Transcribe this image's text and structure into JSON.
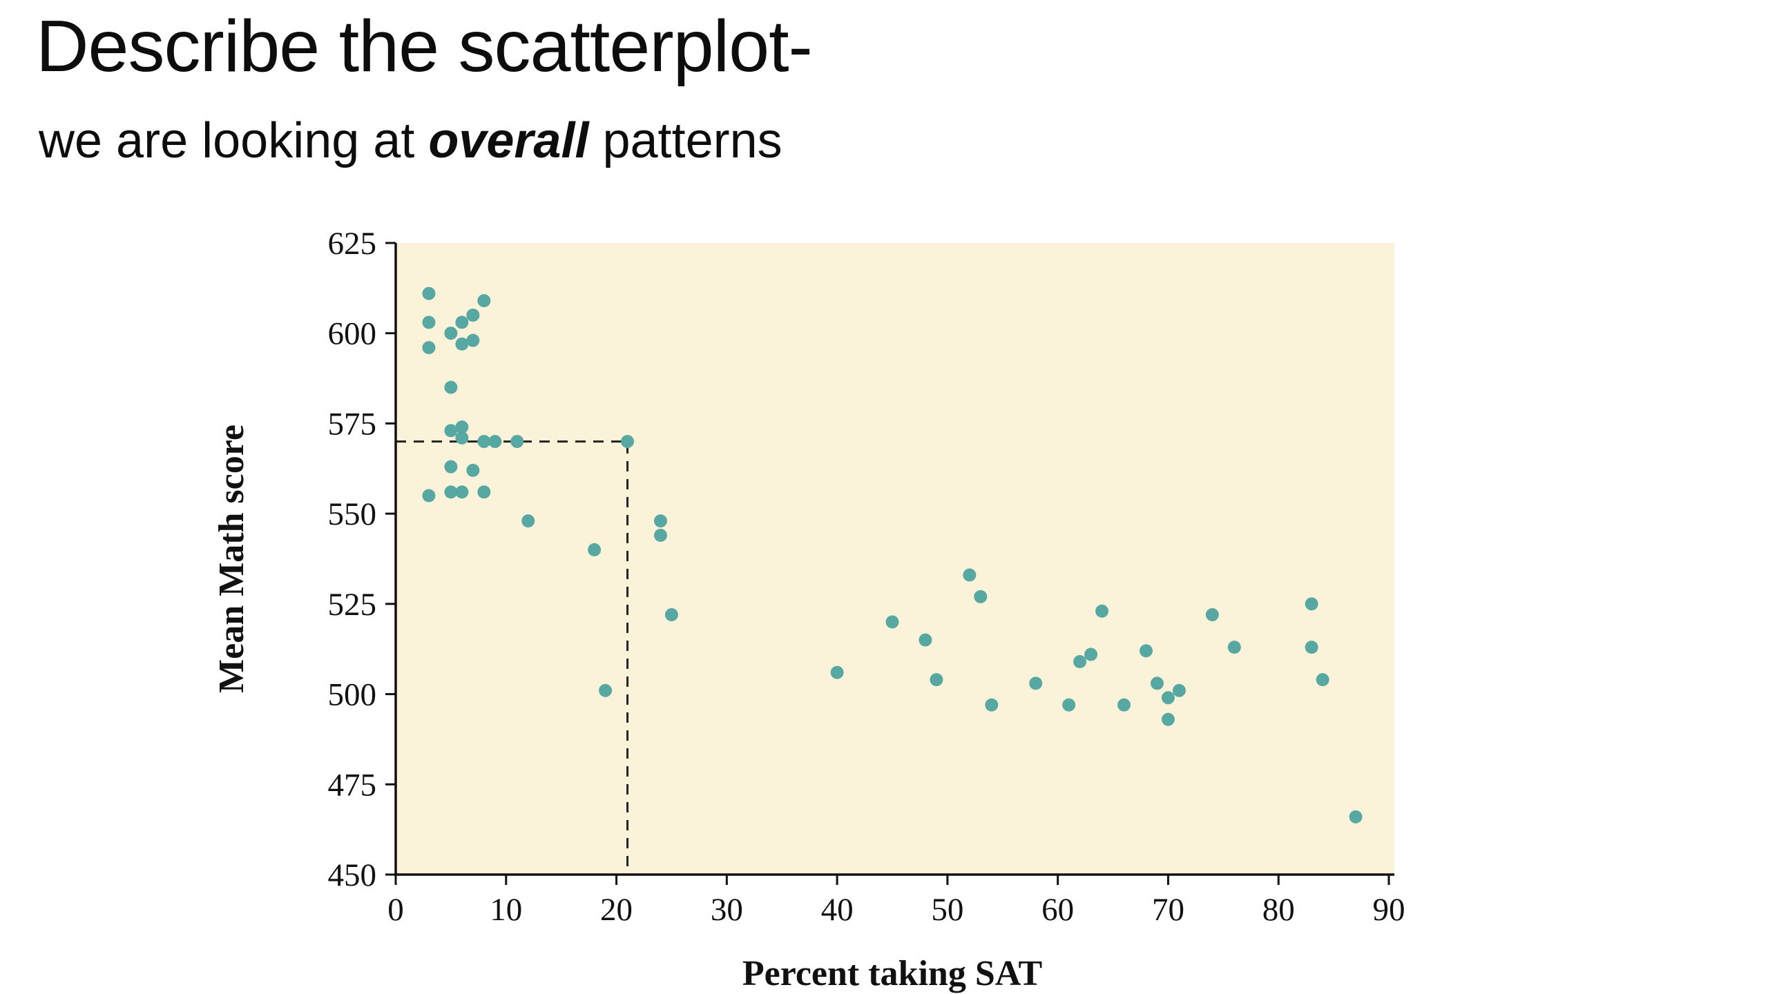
{
  "slide": {
    "title": "Describe the scatterplot-",
    "subtitle_prefix": "we are looking at ",
    "subtitle_emphasis": "overall",
    "subtitle_suffix": " patterns"
  },
  "chart_data": {
    "type": "scatter",
    "title": "",
    "xlabel": "Percent taking SAT",
    "ylabel": "Mean Math score",
    "xlim": [
      0,
      90
    ],
    "ylim": [
      450,
      625
    ],
    "x_ticks": [
      0,
      10,
      20,
      30,
      40,
      50,
      60,
      70,
      80,
      90
    ],
    "y_ticks": [
      450,
      475,
      500,
      525,
      550,
      575,
      600,
      625
    ],
    "grid": false,
    "legend_position": "none",
    "plot_bg_color": "#faf3da",
    "point_color": "#57a8a2",
    "axis_color": "#111111",
    "dashed_reference": {
      "x": 21,
      "y": 570
    },
    "points": [
      [
        3,
        611
      ],
      [
        3,
        603
      ],
      [
        3,
        596
      ],
      [
        5,
        600
      ],
      [
        6,
        603
      ],
      [
        7,
        605
      ],
      [
        8,
        609
      ],
      [
        6,
        597
      ],
      [
        7,
        598
      ],
      [
        5,
        585
      ],
      [
        5,
        573
      ],
      [
        6,
        574
      ],
      [
        6,
        571
      ],
      [
        8,
        570
      ],
      [
        9,
        570
      ],
      [
        5,
        563
      ],
      [
        7,
        562
      ],
      [
        3,
        555
      ],
      [
        5,
        556
      ],
      [
        6,
        556
      ],
      [
        8,
        556
      ],
      [
        11,
        570
      ],
      [
        12,
        548
      ],
      [
        18,
        540
      ],
      [
        19,
        501
      ],
      [
        21,
        570
      ],
      [
        24,
        548
      ],
      [
        24,
        544
      ],
      [
        25,
        522
      ],
      [
        40,
        506
      ],
      [
        45,
        520
      ],
      [
        48,
        515
      ],
      [
        49,
        504
      ],
      [
        52,
        533
      ],
      [
        53,
        527
      ],
      [
        54,
        497
      ],
      [
        58,
        503
      ],
      [
        61,
        497
      ],
      [
        62,
        509
      ],
      [
        63,
        511
      ],
      [
        64,
        523
      ],
      [
        66,
        497
      ],
      [
        68,
        512
      ],
      [
        69,
        503
      ],
      [
        70,
        499
      ],
      [
        70,
        493
      ],
      [
        71,
        501
      ],
      [
        74,
        522
      ],
      [
        76,
        513
      ],
      [
        83,
        525
      ],
      [
        83,
        513
      ],
      [
        84,
        504
      ],
      [
        87,
        466
      ]
    ]
  }
}
